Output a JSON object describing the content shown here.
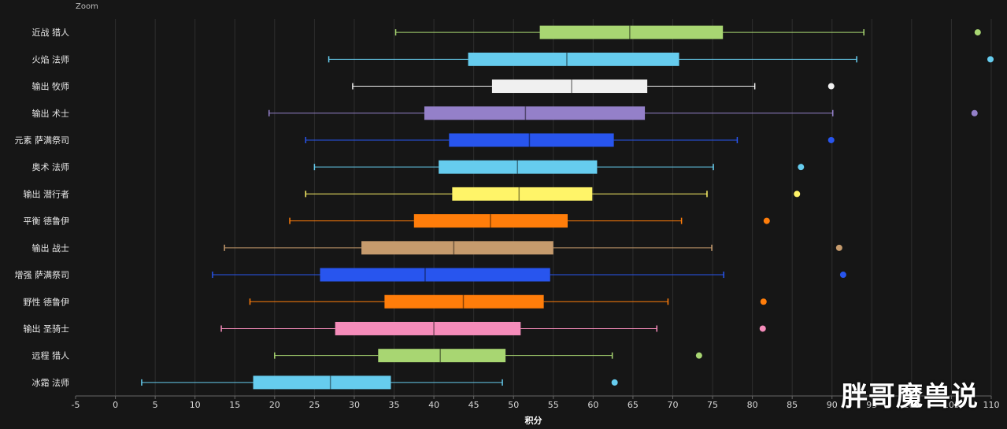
{
  "toolbar": {
    "zoom_label": "Zoom"
  },
  "watermark": {
    "text": "胖哥魔兽说"
  },
  "chart_data": {
    "type": "boxplot",
    "orientation": "horizontal",
    "xlabel": "积分",
    "xlim": [
      -5,
      110
    ],
    "xticks": [
      -5,
      0,
      5,
      10,
      15,
      20,
      25,
      30,
      35,
      40,
      45,
      50,
      55,
      60,
      65,
      70,
      75,
      80,
      85,
      90,
      95,
      100,
      105,
      110
    ],
    "grid": true,
    "categories": [
      "近战 猎人",
      "火焰 法师",
      "输出 牧师",
      "输出 术士",
      "元素 萨满祭司",
      "奥术 法师",
      "输出 潜行者",
      "平衡 德鲁伊",
      "输出 战士",
      "增强 萨满祭司",
      "野性 德鲁伊",
      "输出 圣骑士",
      "远程 猎人",
      "冰霜 法师"
    ],
    "series": [
      {
        "category": "近战 猎人",
        "color": "#a8d672",
        "min": 35.2,
        "q1": 53.3,
        "median": 64.6,
        "q3": 76.3,
        "max": 94.0,
        "outliers": [
          108.3
        ]
      },
      {
        "category": "火焰 法师",
        "color": "#66ccee",
        "min": 26.8,
        "q1": 44.3,
        "median": 56.7,
        "q3": 70.8,
        "max": 93.1,
        "outliers": [
          109.9
        ]
      },
      {
        "category": "输出 牧师",
        "color": "#f0f0f0",
        "min": 29.8,
        "q1": 47.3,
        "median": 57.3,
        "q3": 66.8,
        "max": 80.3,
        "outliers": [
          89.9
        ]
      },
      {
        "category": "输出 术士",
        "color": "#9480c9",
        "min": 19.3,
        "q1": 38.8,
        "median": 51.5,
        "q3": 66.5,
        "max": 90.1,
        "outliers": [
          107.9
        ]
      },
      {
        "category": "元素 萨满祭司",
        "color": "#2855ee",
        "min": 23.9,
        "q1": 41.9,
        "median": 52.0,
        "q3": 62.6,
        "max": 78.1,
        "outliers": [
          89.9
        ]
      },
      {
        "category": "奥术 法师",
        "color": "#66ccee",
        "min": 25.0,
        "q1": 40.6,
        "median": 50.5,
        "q3": 60.5,
        "max": 75.1,
        "outliers": [
          86.1
        ]
      },
      {
        "category": "输出 潜行者",
        "color": "#fff468",
        "min": 23.9,
        "q1": 42.3,
        "median": 50.7,
        "q3": 59.9,
        "max": 74.3,
        "outliers": [
          85.6
        ]
      },
      {
        "category": "平衡 德鲁伊",
        "color": "#ff7d0a",
        "min": 21.9,
        "q1": 37.5,
        "median": 47.1,
        "q3": 56.8,
        "max": 71.1,
        "outliers": [
          81.8
        ]
      },
      {
        "category": "输出 战士",
        "color": "#c69b6d",
        "min": 13.7,
        "q1": 30.9,
        "median": 42.5,
        "q3": 55.0,
        "max": 74.9,
        "outliers": [
          90.9
        ]
      },
      {
        "category": "增强 萨满祭司",
        "color": "#2855ee",
        "min": 12.2,
        "q1": 25.7,
        "median": 38.9,
        "q3": 54.6,
        "max": 76.4,
        "outliers": [
          91.4
        ]
      },
      {
        "category": "野性 德鲁伊",
        "color": "#ff7d0a",
        "min": 16.9,
        "q1": 33.8,
        "median": 43.7,
        "q3": 53.8,
        "max": 69.4,
        "outliers": [
          81.4
        ]
      },
      {
        "category": "输出 圣骑士",
        "color": "#f58cba",
        "min": 13.3,
        "q1": 27.6,
        "median": 40.0,
        "q3": 50.9,
        "max": 68.0,
        "outliers": [
          81.3
        ]
      },
      {
        "category": "远程 猎人",
        "color": "#a8d672",
        "min": 20.0,
        "q1": 33.0,
        "median": 40.8,
        "q3": 49.0,
        "max": 62.4,
        "outliers": [
          73.3
        ]
      },
      {
        "category": "冰霜 法师",
        "color": "#66ccee",
        "min": 3.3,
        "q1": 17.3,
        "median": 27.0,
        "q3": 34.6,
        "max": 48.6,
        "outliers": [
          62.7
        ]
      }
    ]
  }
}
